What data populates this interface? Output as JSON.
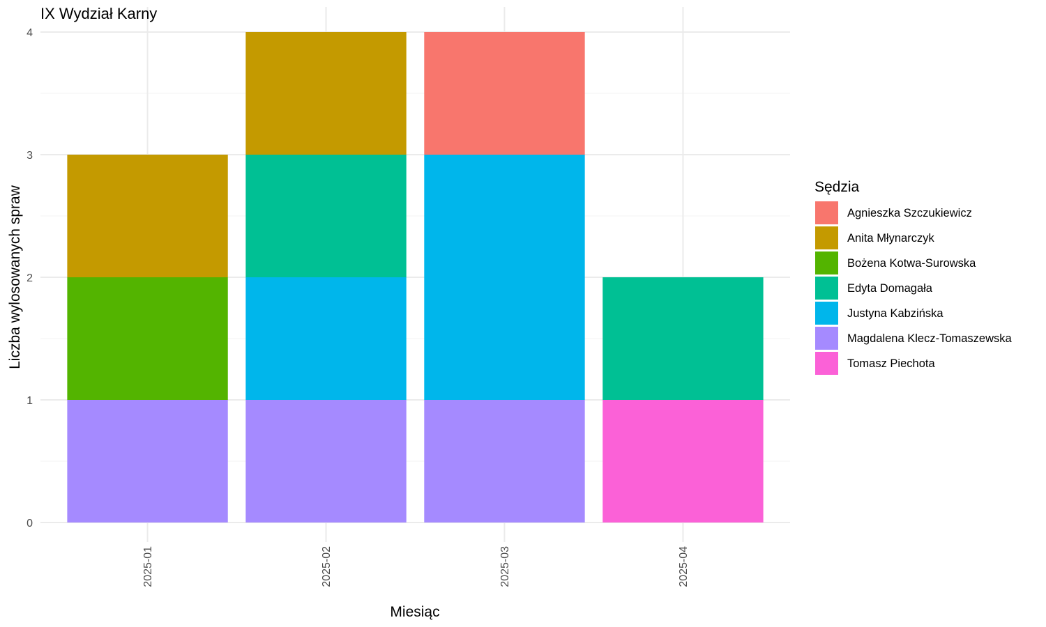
{
  "chart_data": {
    "type": "bar",
    "stacked": true,
    "title": "IX Wydział Karny",
    "xlabel": "Miesiąc",
    "ylabel": "Liczba wylosowanych spraw",
    "categories": [
      "2025-01",
      "2025-02",
      "2025-03",
      "2025-04"
    ],
    "ylim": [
      0,
      4
    ],
    "yticks": [
      0,
      1,
      2,
      3,
      4
    ],
    "grid": true,
    "legend_title": "Sędzia",
    "legend_position": "right",
    "series": [
      {
        "name": "Agnieszka Szczukiewicz",
        "color": "#F8766D",
        "values": [
          0,
          0,
          1,
          0
        ]
      },
      {
        "name": "Anita Młynarczyk",
        "color": "#C49A00",
        "values": [
          1,
          1,
          0,
          0
        ]
      },
      {
        "name": "Bożena Kotwa-Surowska",
        "color": "#53B400",
        "values": [
          1,
          0,
          0,
          0
        ]
      },
      {
        "name": "Edyta Domagała",
        "color": "#00C094",
        "values": [
          0,
          1,
          0,
          1
        ]
      },
      {
        "name": "Justyna Kabzińska",
        "color": "#00B6EB",
        "values": [
          0,
          1,
          2,
          0
        ]
      },
      {
        "name": "Magdalena Klecz-Tomaszewska",
        "color": "#A58AFF",
        "values": [
          1,
          1,
          1,
          0
        ]
      },
      {
        "name": "Tomasz Piechota",
        "color": "#FB61D7",
        "values": [
          0,
          0,
          0,
          1
        ]
      }
    ]
  }
}
